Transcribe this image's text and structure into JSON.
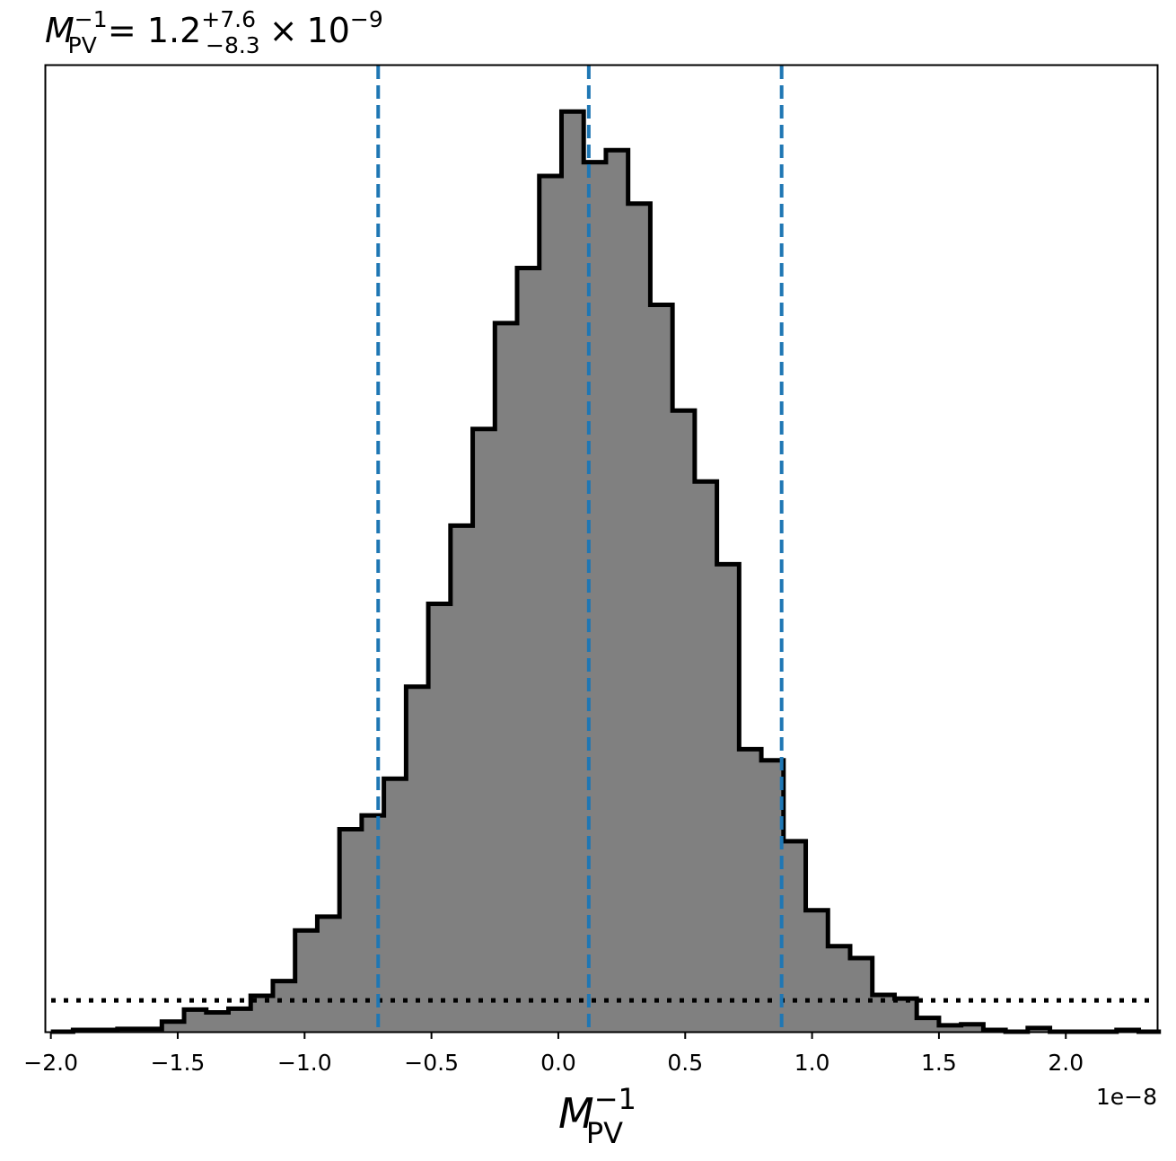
{
  "title": {
    "symbol": "M",
    "sub": "PV",
    "sup": "−1",
    "equals": " = ",
    "value": "1.2",
    "plus": "+7.6",
    "minus": "−8.3",
    "times": "×",
    "base": "10",
    "exp": "−9"
  },
  "xlabel": {
    "symbol": "M",
    "sub": "PV",
    "sup": "−1"
  },
  "offset_text": "1e−8",
  "colors": {
    "hist_fill": "#808080",
    "hist_edge": "#000000",
    "quantile_lines": "#1f77b4",
    "prior_line": "#000000"
  },
  "chart_data": {
    "type": "histogram",
    "x_unit_multiplier": 1e-08,
    "xlim": [
      -2.02,
      2.36
    ],
    "ylim": [
      0,
      1.05
    ],
    "y_ticks_shown": false,
    "x_ticks": [
      -2.0,
      -1.5,
      -1.0,
      -0.5,
      0.0,
      0.5,
      1.0,
      1.5,
      2.0
    ],
    "x_tick_labels": [
      "−2.0",
      "−1.5",
      "−1.0",
      "−0.5",
      "0.0",
      "0.5",
      "1.0",
      "1.5",
      "2.0"
    ],
    "bin_edges": [
      -2.0,
      -1.9125,
      -1.825,
      -1.7375,
      -1.65,
      -1.5625,
      -1.475,
      -1.3875,
      -1.3,
      -1.2125,
      -1.125,
      -1.0375,
      -0.95,
      -0.8625,
      -0.775,
      -0.6875,
      -0.6,
      -0.5125,
      -0.425,
      -0.3375,
      -0.25,
      -0.1625,
      -0.075,
      0.0125,
      0.1,
      0.1875,
      0.275,
      0.3625,
      0.45,
      0.5375,
      0.625,
      0.7125,
      0.8,
      0.8875,
      0.975,
      1.0625,
      1.15,
      1.2375,
      1.325,
      1.4125,
      1.5,
      1.5875,
      1.675,
      1.7625,
      1.85,
      1.9375,
      2.025,
      2.1125,
      2.2,
      2.2875,
      2.375
    ],
    "densities": [
      0.0,
      0.002,
      0.002,
      0.003,
      0.003,
      0.011,
      0.024,
      0.021,
      0.025,
      0.039,
      0.055,
      0.11,
      0.125,
      0.22,
      0.235,
      0.275,
      0.375,
      0.465,
      0.55,
      0.655,
      0.77,
      0.83,
      0.93,
      1.0,
      0.945,
      0.958,
      0.9,
      0.79,
      0.675,
      0.598,
      0.508,
      0.307,
      0.295,
      0.207,
      0.132,
      0.093,
      0.08,
      0.04,
      0.036,
      0.015,
      0.007,
      0.008,
      0.002,
      0.0,
      0.004,
      0.0,
      0.0,
      0.0,
      0.002,
      0.0
    ],
    "quantiles": {
      "lower": -0.71,
      "median": 0.12,
      "upper": 0.88
    },
    "prior_level": 0.034
  }
}
